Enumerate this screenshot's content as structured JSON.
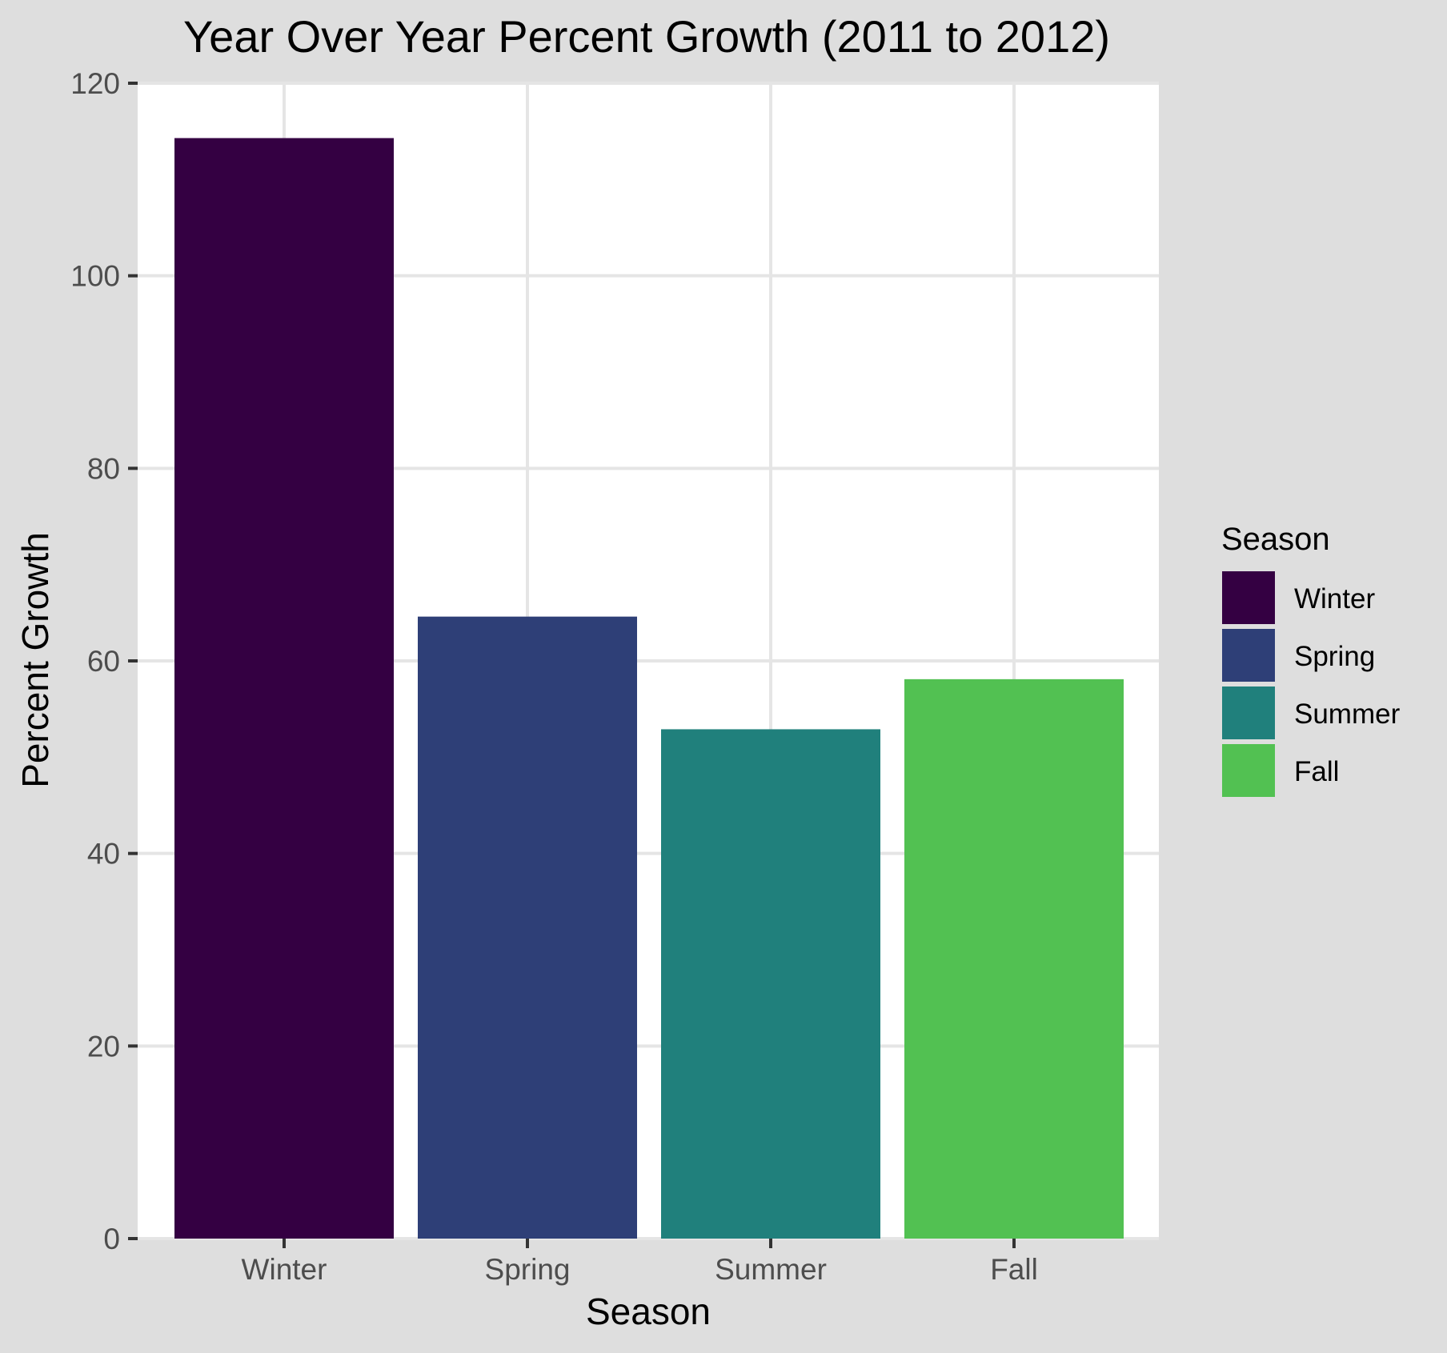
{
  "chart_data": {
    "type": "bar",
    "title": "Year Over Year Percent Growth (2011 to 2012)",
    "xlabel": "Season",
    "ylabel": "Percent Growth",
    "categories": [
      "Winter",
      "Spring",
      "Summer",
      "Fall"
    ],
    "values": [
      114.3,
      64.6,
      52.9,
      58.1
    ],
    "colors": [
      "#340042",
      "#2e3f77",
      "#20807c",
      "#52c152"
    ],
    "ylim": [
      0,
      120
    ],
    "yticks": [
      0,
      20,
      40,
      60,
      80,
      100,
      120
    ],
    "grid": true,
    "legend": {
      "title": "Season",
      "placement": "right",
      "items": [
        "Winter",
        "Spring",
        "Summer",
        "Fall"
      ]
    }
  }
}
